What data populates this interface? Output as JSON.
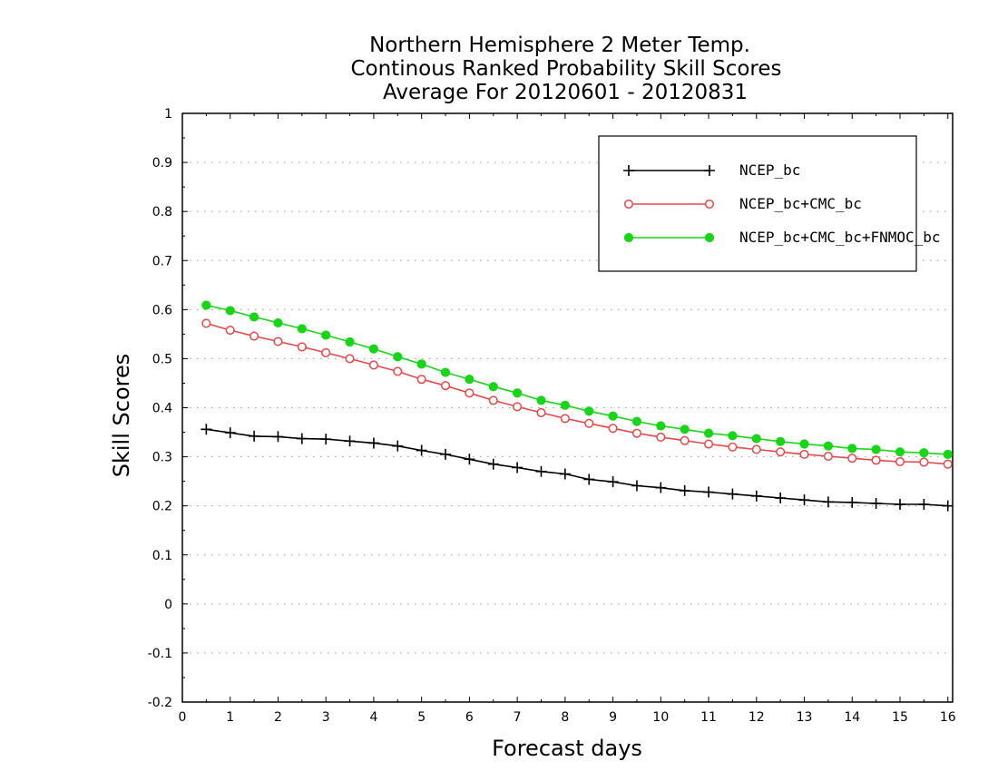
{
  "chart_data": {
    "type": "line",
    "title_lines": [
      "Northern Hemisphere 2 Meter Temp.",
      "Continous Ranked Probability Skill Scores",
      "Average For 20120601 - 20120831"
    ],
    "xlabel": "Forecast days",
    "ylabel": "Skill Scores",
    "xlim": [
      0,
      16.1
    ],
    "ylim": [
      -0.2,
      1
    ],
    "x_ticks": [
      0,
      1,
      2,
      3,
      4,
      5,
      6,
      7,
      8,
      9,
      10,
      11,
      12,
      13,
      14,
      15,
      16
    ],
    "x_tick_labels": [
      "0",
      "1",
      "2",
      "3",
      "4",
      "5",
      "6",
      "7",
      "8",
      "9",
      "10",
      "11",
      "12",
      "13",
      "14",
      "15",
      "16"
    ],
    "y_ticks": [
      -0.2,
      -0.1,
      0,
      0.1,
      0.2,
      0.3,
      0.4,
      0.5,
      0.6,
      0.7,
      0.8,
      0.9,
      1
    ],
    "y_tick_labels": [
      "-0.2",
      "-0.1",
      "0",
      "0.1",
      "0.2",
      "0.3",
      "0.4",
      "0.5",
      "0.6",
      "0.7",
      "0.8",
      "0.9",
      "1"
    ],
    "grid": "horizontal dotted",
    "legend_position": "top-right",
    "x": [
      0.5,
      1.0,
      1.5,
      2.0,
      2.5,
      3.0,
      3.5,
      4.0,
      4.5,
      5.0,
      5.5,
      6.0,
      6.5,
      7.0,
      7.5,
      8.0,
      8.5,
      9.0,
      9.5,
      10.0,
      10.5,
      11.0,
      11.5,
      12.0,
      12.5,
      13.0,
      13.5,
      14.0,
      14.5,
      15.0,
      15.5,
      16.0
    ],
    "series": [
      {
        "name": "NCEP_bc",
        "color": "#000000",
        "marker": "plus",
        "values": [
          0.356,
          0.349,
          0.342,
          0.341,
          0.337,
          0.336,
          0.332,
          0.328,
          0.322,
          0.313,
          0.305,
          0.295,
          0.285,
          0.278,
          0.27,
          0.265,
          0.254,
          0.249,
          0.241,
          0.237,
          0.231,
          0.228,
          0.224,
          0.22,
          0.216,
          0.212,
          0.208,
          0.207,
          0.205,
          0.203,
          0.203,
          0.2
        ]
      },
      {
        "name": "NCEP_bc+CMC_bc",
        "color": "#e8474a",
        "marker": "open-circle",
        "values": [
          0.572,
          0.558,
          0.546,
          0.535,
          0.524,
          0.512,
          0.5,
          0.487,
          0.474,
          0.458,
          0.445,
          0.43,
          0.415,
          0.402,
          0.39,
          0.378,
          0.368,
          0.358,
          0.348,
          0.34,
          0.333,
          0.326,
          0.32,
          0.315,
          0.31,
          0.305,
          0.301,
          0.297,
          0.293,
          0.29,
          0.289,
          0.285
        ]
      },
      {
        "name": "NCEP_bc+CMC_bc+FNMOC_bc",
        "color": "#16d616",
        "marker": "filled-circle",
        "values": [
          0.609,
          0.598,
          0.585,
          0.573,
          0.561,
          0.548,
          0.534,
          0.52,
          0.504,
          0.489,
          0.472,
          0.458,
          0.443,
          0.43,
          0.415,
          0.405,
          0.393,
          0.383,
          0.372,
          0.363,
          0.356,
          0.348,
          0.343,
          0.337,
          0.331,
          0.326,
          0.322,
          0.317,
          0.315,
          0.31,
          0.308,
          0.305
        ]
      }
    ]
  }
}
